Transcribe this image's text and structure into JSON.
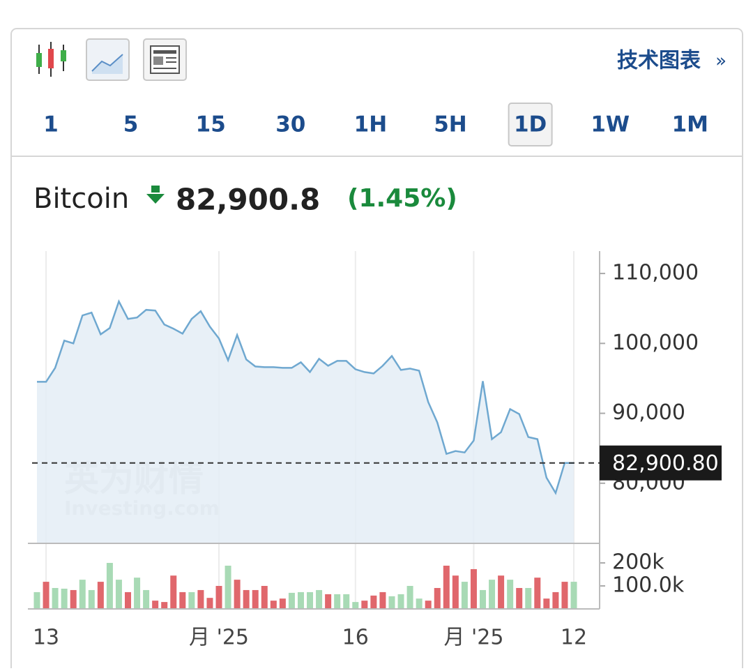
{
  "toolbar": {
    "link": "技术图表",
    "link_arrow": "»",
    "timeframes": [
      "1",
      "5",
      "15",
      "30",
      "1H",
      "5H",
      "1D",
      "1W",
      "1M"
    ],
    "active_timeframe": "1D"
  },
  "quote": {
    "name": "Bitcoin",
    "price": "82,900.8",
    "change": "(1.45%)"
  },
  "chart_data": [
    {
      "type": "area",
      "color": "#6fa8d0",
      "fill": "#e4edf6",
      "categories": [
        null,
        "13",
        null,
        null,
        null,
        null,
        null,
        null,
        null,
        null,
        null,
        null,
        null,
        null,
        null,
        null,
        null,
        null,
        null,
        null,
        "月 '25",
        null,
        null,
        null,
        null,
        null,
        null,
        null,
        null,
        null,
        null,
        null,
        null,
        null,
        null,
        "16",
        null,
        null,
        null,
        null,
        null,
        null,
        null,
        null,
        null,
        null,
        null,
        null,
        "月 '25",
        null,
        null,
        null,
        null,
        null,
        null,
        null,
        null,
        null,
        null,
        "12"
      ],
      "values": [
        94500,
        94500,
        96500,
        100400,
        100000,
        104000,
        104400,
        101300,
        102200,
        106000,
        103500,
        103700,
        104800,
        104700,
        102700,
        102100,
        101400,
        103500,
        104600,
        102400,
        100700,
        97600,
        101200,
        97700,
        96700,
        96600,
        96600,
        96500,
        96500,
        97300,
        95900,
        97800,
        96800,
        97500,
        97500,
        96300,
        95900,
        95700,
        96800,
        98200,
        96200,
        96400,
        96100,
        91600,
        88700,
        84200,
        84600,
        84400,
        86100,
        94600,
        86300,
        87300,
        90600,
        89900,
        86600,
        86300,
        80800,
        78600,
        82900,
        82900.8
      ],
      "ylim": [
        71500,
        113200
      ],
      "yticks": [
        {
          "value": 80000,
          "label": "80,000"
        },
        {
          "value": 90000,
          "label": "90,000"
        },
        {
          "value": 100000,
          "label": "100,000"
        },
        {
          "value": 110000,
          "label": "110,000"
        }
      ],
      "current_price": {
        "value": 82900.8,
        "label": "82,900.80"
      },
      "watermark": [
        "英为财情",
        "Investing.com"
      ]
    },
    {
      "type": "bar",
      "values": [
        73000,
        118000,
        91000,
        88000,
        82000,
        127000,
        82000,
        118000,
        200000,
        127000,
        73000,
        136000,
        82000,
        36000,
        30000,
        145000,
        73000,
        73000,
        82000,
        48000,
        100000,
        188000,
        127000,
        82000,
        82000,
        100000,
        36000,
        45000,
        70000,
        73000,
        73000,
        82000,
        64000,
        64000,
        64000,
        30000,
        36000,
        58000,
        73000,
        55000,
        64000,
        100000,
        45000,
        36000,
        91000,
        188000,
        145000,
        118000,
        173000,
        82000,
        127000,
        145000,
        127000,
        91000,
        91000,
        136000,
        45000,
        73000,
        118000,
        118000
      ],
      "colors": [
        "#a8dab5",
        "#e0676c",
        "#a8dab5",
        "#a8dab5",
        "#e0676c",
        "#a8dab5",
        "#a8dab5",
        "#e0676c",
        "#a8dab5",
        "#a8dab5",
        "#e0676c",
        "#a8dab5",
        "#a8dab5",
        "#e0676c",
        "#e0676c",
        "#e0676c",
        "#e0676c",
        "#a8dab5",
        "#e0676c",
        "#e0676c",
        "#e0676c",
        "#a8dab5",
        "#e0676c",
        "#e0676c",
        "#e0676c",
        "#e0676c",
        "#e0676c",
        "#e0676c",
        "#a8dab5",
        "#a8dab5",
        "#a8dab5",
        "#a8dab5",
        "#e0676c",
        "#a8dab5",
        "#a8dab5",
        "#a8dab5",
        "#e0676c",
        "#e0676c",
        "#e0676c",
        "#a8dab5",
        "#a8dab5",
        "#a8dab5",
        "#a8dab5",
        "#e0676c",
        "#e0676c",
        "#e0676c",
        "#e0676c",
        "#a8dab5",
        "#e0676c",
        "#a8dab5",
        "#a8dab5",
        "#e0676c",
        "#a8dab5",
        "#e0676c",
        "#a8dab5",
        "#e0676c",
        "#e0676c",
        "#e0676c",
        "#e0676c",
        "#a8dab5"
      ],
      "ylim": [
        0,
        285000
      ],
      "yticks": [
        {
          "value": 100000,
          "label": "100.0k"
        },
        {
          "value": 200000,
          "label": "200k"
        }
      ]
    }
  ]
}
